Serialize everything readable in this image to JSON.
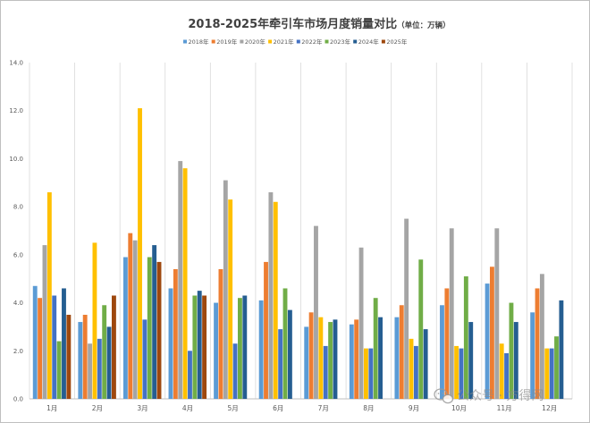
{
  "chart_data": {
    "type": "bar",
    "title": "2018-2025年牵引车市场月度销量对比",
    "title_unit": "（单位：万辆）",
    "categories": [
      "1月",
      "2月",
      "3月",
      "4月",
      "5月",
      "6月",
      "7月",
      "8月",
      "9月",
      "10月",
      "11月",
      "12月"
    ],
    "ylim": [
      0,
      14
    ],
    "yticks": [
      "0.0",
      "2.0",
      "4.0",
      "6.0",
      "8.0",
      "10.0",
      "12.0",
      "14.0"
    ],
    "grid": {
      "vertical": true,
      "horizontal": false
    },
    "legend": "top",
    "series": [
      {
        "name": "2018年",
        "color": "#5b9bd5",
        "values": [
          4.7,
          3.2,
          5.9,
          4.6,
          4.0,
          4.1,
          3.0,
          3.1,
          3.4,
          3.9,
          4.8,
          3.6
        ]
      },
      {
        "name": "2019年",
        "color": "#ed7d31",
        "values": [
          4.2,
          3.5,
          6.9,
          5.4,
          5.4,
          5.7,
          3.6,
          3.3,
          3.9,
          4.6,
          5.5,
          4.6
        ]
      },
      {
        "name": "2020年",
        "color": "#a5a5a5",
        "values": [
          6.4,
          2.3,
          6.6,
          9.9,
          9.1,
          8.6,
          7.2,
          6.3,
          7.5,
          7.1,
          7.1,
          5.2
        ]
      },
      {
        "name": "2021年",
        "color": "#ffc000",
        "values": [
          8.6,
          6.5,
          12.1,
          9.6,
          8.3,
          8.2,
          3.4,
          2.1,
          2.5,
          2.2,
          2.3,
          2.1
        ]
      },
      {
        "name": "2022年",
        "color": "#4472c4",
        "values": [
          4.3,
          2.5,
          3.3,
          2.0,
          2.3,
          2.9,
          2.2,
          2.1,
          2.2,
          2.1,
          1.9,
          2.1
        ]
      },
      {
        "name": "2023年",
        "color": "#70ad47",
        "values": [
          2.4,
          3.9,
          5.9,
          4.3,
          4.2,
          4.6,
          3.2,
          4.2,
          5.8,
          5.1,
          4.0,
          2.6
        ]
      },
      {
        "name": "2024年",
        "color": "#255e91",
        "values": [
          4.6,
          3.0,
          6.4,
          4.5,
          4.3,
          3.7,
          3.3,
          3.4,
          2.9,
          3.2,
          3.2,
          4.1
        ]
      },
      {
        "name": "2025年",
        "color": "#9e480e",
        "values": [
          3.5,
          4.3,
          5.7,
          4.3,
          null,
          null,
          null,
          null,
          null,
          null,
          null,
          null
        ]
      }
    ]
  },
  "watermark": {
    "text": "公众号 · 方得网",
    "icon": "wechat-icon"
  }
}
